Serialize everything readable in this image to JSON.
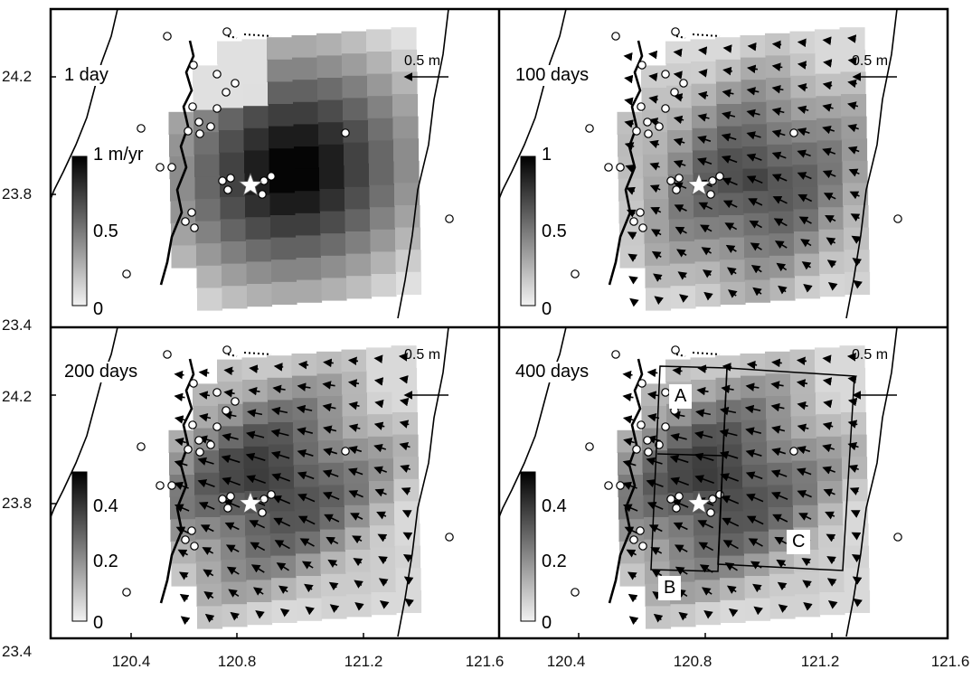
{
  "axes": {
    "y_ticks": [
      "24.2",
      "23.8",
      "23.4"
    ],
    "y_bottom_ticks": [
      "24.2",
      "23.8",
      "23.4"
    ],
    "x_ticks": [
      "120.4",
      "120.8",
      "121.2",
      "121.6"
    ]
  },
  "scale_arrow_label": "0.5 m",
  "panels": [
    {
      "id": "p1",
      "time_label": "1 day",
      "colorbar_ticks": [
        {
          "label": "1 m/yr",
          "frac": 1.0
        },
        {
          "label": "0.5",
          "frac": 0.5
        },
        {
          "label": "0",
          "frac": 0.0
        }
      ],
      "color_max": 1.0,
      "has_vectors": false,
      "regions": []
    },
    {
      "id": "p2",
      "time_label": "100 days",
      "colorbar_ticks": [
        {
          "label": "1",
          "frac": 1.0
        },
        {
          "label": "0.5",
          "frac": 0.5
        },
        {
          "label": "0",
          "frac": 0.0
        }
      ],
      "color_max": 1.0,
      "has_vectors": true,
      "regions": []
    },
    {
      "id": "p3",
      "time_label": "200 days",
      "colorbar_ticks": [
        {
          "label": "0.4",
          "frac": 0.8
        },
        {
          "label": "0.2",
          "frac": 0.4
        },
        {
          "label": "0",
          "frac": 0.0
        }
      ],
      "color_max": 0.5,
      "has_vectors": true,
      "regions": []
    },
    {
      "id": "p4",
      "time_label": "400 days",
      "colorbar_ticks": [
        {
          "label": "0.4",
          "frac": 0.8
        },
        {
          "label": "0.2",
          "frac": 0.4
        },
        {
          "label": "0",
          "frac": 0.0
        }
      ],
      "color_max": 0.5,
      "has_vectors": true,
      "regions": [
        "A",
        "B",
        "C"
      ]
    }
  ],
  "colors": {
    "frame": "#000000",
    "background": "#ffffff"
  }
}
